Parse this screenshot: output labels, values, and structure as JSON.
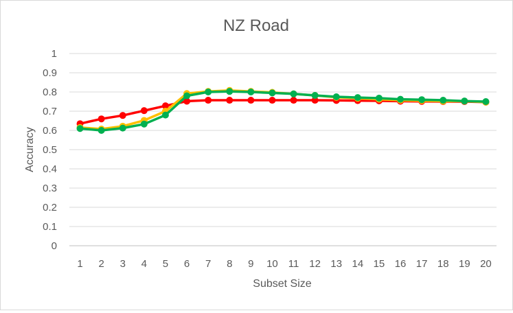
{
  "chart_data": {
    "type": "line",
    "title": "NZ Road",
    "xlabel": "Subset Size",
    "ylabel": "Accuracy",
    "x": [
      1,
      2,
      3,
      4,
      5,
      6,
      7,
      8,
      9,
      10,
      11,
      12,
      13,
      14,
      15,
      16,
      17,
      18,
      19,
      20
    ],
    "x_tick_labels": [
      "1",
      "2",
      "3",
      "4",
      "5",
      "6",
      "7",
      "8",
      "9",
      "10",
      "11",
      "12",
      "13",
      "14",
      "15",
      "16",
      "17",
      "18",
      "19",
      "20"
    ],
    "ylim": [
      0,
      1
    ],
    "y_ticks": [
      0,
      0.1,
      0.2,
      0.3,
      0.4,
      0.5,
      0.6,
      0.7,
      0.8,
      0.9,
      1
    ],
    "y_tick_labels": [
      "0",
      "0.1",
      "0.2",
      "0.3",
      "0.4",
      "0.5",
      "0.6",
      "0.7",
      "0.8",
      "0.9",
      "1"
    ],
    "grid": true,
    "legend": "none",
    "series": [
      {
        "color": "#ff0000",
        "values": [
          0.635,
          0.66,
          0.678,
          0.703,
          0.728,
          0.752,
          0.757,
          0.757,
          0.757,
          0.757,
          0.757,
          0.757,
          0.756,
          0.755,
          0.754,
          0.752,
          0.751,
          0.75,
          0.75,
          0.747
        ]
      },
      {
        "color": "#ffc000",
        "values": [
          0.615,
          0.607,
          0.622,
          0.652,
          0.7,
          0.792,
          0.803,
          0.808,
          0.803,
          0.798,
          0.79,
          0.782,
          0.772,
          0.767,
          0.762,
          0.757,
          0.755,
          0.752,
          0.752,
          0.747
        ]
      },
      {
        "color": "#00b050",
        "values": [
          0.61,
          0.6,
          0.612,
          0.633,
          0.68,
          0.78,
          0.8,
          0.803,
          0.8,
          0.795,
          0.79,
          0.782,
          0.775,
          0.771,
          0.768,
          0.762,
          0.76,
          0.757,
          0.753,
          0.75
        ]
      }
    ]
  }
}
